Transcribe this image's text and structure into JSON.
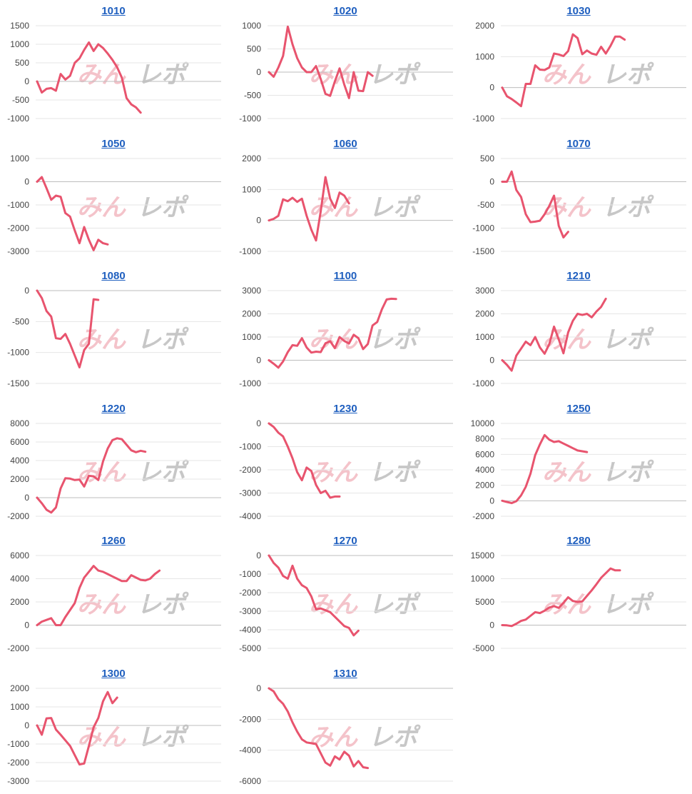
{
  "colors": {
    "line": "#e8546e",
    "grid": "#e6e6e6",
    "zero": "#bdbdbd",
    "title": "#1f5fbf",
    "watermark_left": "#f2b8c1",
    "watermark_right": "#bdbdbd"
  },
  "watermark": {
    "left": "みん",
    "right": "レポ"
  },
  "chart_data": [
    {
      "type": "line",
      "title": "1010",
      "yticks": [
        1500,
        1000,
        500,
        0,
        -500,
        -1000
      ],
      "ylim": [
        -1000,
        1500
      ],
      "values": [
        0,
        -300,
        -200,
        -180,
        -250,
        200,
        50,
        150,
        500,
        620,
        850,
        1050,
        820,
        1000,
        900,
        750,
        580,
        380,
        100,
        -450,
        -620,
        -700,
        -840
      ]
    },
    {
      "type": "line",
      "title": "1020",
      "yticks": [
        1000,
        500,
        0,
        -500,
        -1000
      ],
      "ylim": [
        -1000,
        1000
      ],
      "values": [
        0,
        -100,
        100,
        350,
        980,
        600,
        300,
        100,
        0,
        0,
        130,
        -150,
        -470,
        -510,
        -200,
        80,
        -270,
        -560,
        0,
        -400,
        -410,
        0,
        -80
      ]
    },
    {
      "type": "line",
      "title": "1030",
      "yticks": [
        2000,
        1000,
        0,
        -1000
      ],
      "ylim": [
        -1000,
        2000
      ],
      "values": [
        0,
        -280,
        -370,
        -480,
        -600,
        120,
        120,
        720,
        580,
        570,
        650,
        1100,
        1070,
        1020,
        1180,
        1720,
        1600,
        1080,
        1200,
        1100,
        1060,
        1320,
        1100,
        1350,
        1650,
        1650,
        1550
      ]
    },
    {
      "type": "line",
      "title": "1050",
      "yticks": [
        1000,
        0,
        -1000,
        -2000,
        -3000
      ],
      "ylim": [
        -3000,
        1000
      ],
      "values": [
        0,
        200,
        -280,
        -780,
        -600,
        -650,
        -1350,
        -1500,
        -2100,
        -2650,
        -1950,
        -2500,
        -2950,
        -2500,
        -2650,
        -2700
      ]
    },
    {
      "type": "line",
      "title": "1060",
      "yticks": [
        2000,
        1000,
        0,
        -1000
      ],
      "ylim": [
        -1000,
        2000
      ],
      "values": [
        0,
        50,
        150,
        680,
        620,
        730,
        600,
        700,
        150,
        -300,
        -650,
        300,
        1400,
        700,
        400,
        900,
        800,
        550
      ]
    },
    {
      "type": "line",
      "title": "1070",
      "yticks": [
        500,
        0,
        -500,
        -1000,
        -1500
      ],
      "ylim": [
        -1500,
        500
      ],
      "values": [
        0,
        0,
        220,
        -180,
        -330,
        -700,
        -870,
        -860,
        -840,
        -700,
        -520,
        -300,
        -950,
        -1200,
        -1080
      ]
    },
    {
      "type": "line",
      "title": "1080",
      "yticks": [
        0,
        -500,
        -1000,
        -1500
      ],
      "ylim": [
        -1500,
        0
      ],
      "values": [
        0,
        -120,
        -330,
        -420,
        -770,
        -780,
        -700,
        -860,
        -1050,
        -1240,
        -960,
        -860,
        -140,
        -150
      ]
    },
    {
      "type": "line",
      "title": "1100",
      "yticks": [
        3000,
        2000,
        1000,
        0,
        -1000
      ],
      "ylim": [
        -1000,
        3000
      ],
      "values": [
        0,
        -150,
        -320,
        -50,
        350,
        650,
        620,
        950,
        550,
        330,
        370,
        350,
        730,
        820,
        520,
        1000,
        830,
        720,
        1100,
        950,
        480,
        700,
        1500,
        1650,
        2200,
        2620,
        2650,
        2640
      ]
    },
    {
      "type": "line",
      "title": "1210",
      "yticks": [
        3000,
        2000,
        1000,
        0,
        -1000
      ],
      "ylim": [
        -1000,
        3000
      ],
      "values": [
        0,
        -200,
        -450,
        200,
        500,
        800,
        650,
        1000,
        550,
        280,
        700,
        1450,
        900,
        300,
        1200,
        1700,
        2000,
        1950,
        2000,
        1850,
        2100,
        2300,
        2650
      ]
    },
    {
      "type": "line",
      "title": "1220",
      "yticks": [
        8000,
        6000,
        4000,
        2000,
        0,
        -2000
      ],
      "ylim": [
        -2000,
        8000
      ],
      "values": [
        0,
        -600,
        -1300,
        -1600,
        -1050,
        1000,
        2100,
        2050,
        1900,
        1950,
        1200,
        2350,
        2300,
        1900,
        3900,
        5300,
        6200,
        6400,
        6300,
        5700,
        5100,
        4900,
        5050,
        4950
      ]
    },
    {
      "type": "line",
      "title": "1230",
      "yticks": [
        0,
        -1000,
        -2000,
        -3000,
        -4000
      ],
      "ylim": [
        -4000,
        0
      ],
      "values": [
        0,
        -150,
        -400,
        -560,
        -1000,
        -1500,
        -2100,
        -2450,
        -1900,
        -2050,
        -2650,
        -3000,
        -2900,
        -3200,
        -3150,
        -3150
      ]
    },
    {
      "type": "line",
      "title": "1250",
      "yticks": [
        10000,
        8000,
        6000,
        4000,
        2000,
        0,
        -2000
      ],
      "ylim": [
        -2000,
        10000
      ],
      "values": [
        0,
        -150,
        -300,
        -50,
        700,
        1800,
        3500,
        5900,
        7300,
        8500,
        7900,
        7600,
        7700,
        7400,
        7100,
        6800,
        6500,
        6400,
        6300
      ]
    },
    {
      "type": "line",
      "title": "1260",
      "yticks": [
        6000,
        4000,
        2000,
        0,
        -2000
      ],
      "ylim": [
        -2000,
        6000
      ],
      "values": [
        0,
        300,
        450,
        600,
        0,
        0,
        700,
        1300,
        1900,
        3200,
        4100,
        4600,
        5100,
        4700,
        4600,
        4400,
        4200,
        4000,
        3800,
        3800,
        4300,
        4100,
        3900,
        3850,
        4000,
        4400,
        4700
      ]
    },
    {
      "type": "line",
      "title": "1270",
      "yticks": [
        0,
        -1000,
        -2000,
        -3000,
        -4000,
        -5000
      ],
      "ylim": [
        -5000,
        0
      ],
      "values": [
        0,
        -400,
        -650,
        -1100,
        -1250,
        -550,
        -1250,
        -1600,
        -1750,
        -2200,
        -2900,
        -2850,
        -2950,
        -3050,
        -3300,
        -3550,
        -3800,
        -3900,
        -4300,
        -4050
      ]
    },
    {
      "type": "line",
      "title": "1280",
      "yticks": [
        15000,
        10000,
        5000,
        0,
        -5000
      ],
      "ylim": [
        -5000,
        15000
      ],
      "values": [
        0,
        -50,
        -200,
        300,
        900,
        1200,
        2000,
        2800,
        2600,
        3100,
        3800,
        4100,
        3700,
        4800,
        6000,
        5200,
        5000,
        5100,
        6300,
        7500,
        8800,
        10200,
        11200,
        12200,
        11800,
        11800
      ]
    },
    {
      "type": "line",
      "title": "1300",
      "yticks": [
        2000,
        1000,
        0,
        -1000,
        -2000,
        -3000
      ],
      "ylim": [
        -3000,
        2000
      ],
      "values": [
        0,
        -500,
        380,
        400,
        -220,
        -500,
        -800,
        -1100,
        -1600,
        -2100,
        -2050,
        -1100,
        -100,
        400,
        1300,
        1800,
        1200,
        1500
      ]
    },
    {
      "type": "line",
      "title": "1310",
      "yticks": [
        0,
        -2000,
        -4000,
        -6000
      ],
      "ylim": [
        -6000,
        0
      ],
      "values": [
        0,
        -200,
        -700,
        -1000,
        -1500,
        -2200,
        -2800,
        -3300,
        -3500,
        -3550,
        -3600,
        -4200,
        -4800,
        -5000,
        -4400,
        -4600,
        -4100,
        -4350,
        -5050,
        -4700,
        -5100,
        -5150
      ]
    }
  ]
}
